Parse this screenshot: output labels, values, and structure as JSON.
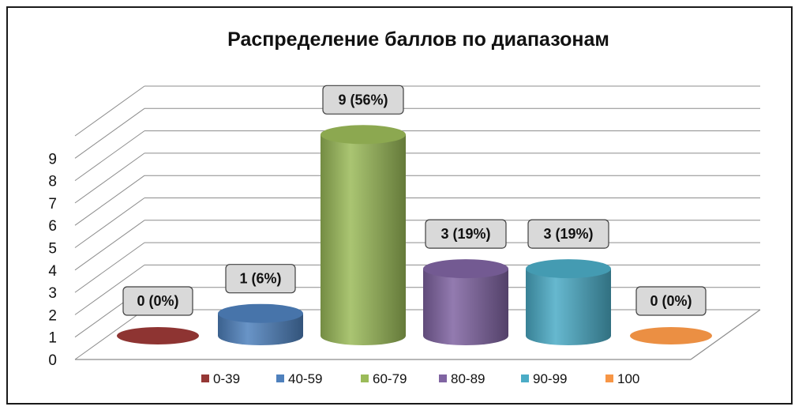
{
  "chart_data": {
    "type": "bar",
    "title": "Распределение баллов по диапазонам",
    "categories": [
      "0-39",
      "40-59",
      "60-79",
      "80-89",
      "90-99",
      "100"
    ],
    "values": [
      0,
      1,
      9,
      3,
      3,
      0
    ],
    "data_labels": [
      "0 (0%)",
      "1 (6%)",
      "9 (56%)",
      "3 (19%)",
      "3 (19%)",
      "0 (0%)"
    ],
    "colors": [
      "#953735",
      "#4f81bd",
      "#9bbb59",
      "#8064a2",
      "#4bacc6",
      "#f79646"
    ],
    "ylim": [
      0,
      9
    ],
    "yticks": [
      "0",
      "1",
      "2",
      "3",
      "4",
      "5",
      "6",
      "7",
      "8",
      "9"
    ],
    "grid": true,
    "legend": "bottom",
    "style": "3d-cylinder"
  }
}
